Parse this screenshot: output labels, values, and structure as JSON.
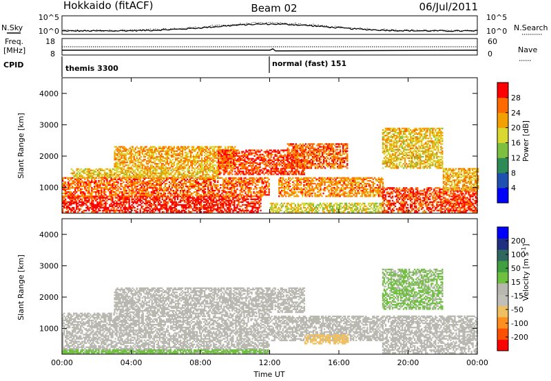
{
  "header": {
    "station": "Hokkaido (fitACF)",
    "beam": "Beam 02",
    "date": "06/Jul/2011"
  },
  "summary": {
    "nsky_label": "N.Sky",
    "nsky_ticks": [
      "10^5",
      "10^0"
    ],
    "nsearch_label": "N.Search",
    "nsearch_ticks": [
      "10^5",
      "10^0"
    ],
    "freq_label": "Freq.",
    "freq_unit": "[MHz]",
    "freq_ticks": [
      "18",
      "8"
    ],
    "nave_label": "Nave",
    "nave_ticks": [
      "60",
      "0"
    ],
    "cpid_label": "CPID",
    "cpid_segments": [
      {
        "start_hour": 0,
        "label": "themis 3300"
      },
      {
        "start_hour": 12,
        "label": "normal (fast) 151"
      }
    ]
  },
  "colors": {
    "power_scale": [
      "#0000ff",
      "#2050b0",
      "#2e8b57",
      "#7fbf3f",
      "#d8d830",
      "#f4a000",
      "#ff6a00",
      "#ff0000"
    ],
    "velocity_scale": [
      "#ff0000",
      "#ff5000",
      "#ff9020",
      "#f0c060",
      "#c0c0b8",
      "#b8b8b0",
      "#70c040",
      "#40a040",
      "#306860",
      "#203080",
      "#0000ff"
    ],
    "ground_scatter": "#c0c0b8"
  },
  "chart_data": [
    {
      "type": "heatmap",
      "name": "power",
      "xlabel": "",
      "ylabel": "Slant Range [km]",
      "x_ticks": [
        "00:00",
        "04:00",
        "08:00",
        "12:00",
        "16:00",
        "20:00",
        "00:00"
      ],
      "x_range_hours": [
        0,
        24
      ],
      "y_ticks": [
        1000,
        2000,
        3000,
        4000
      ],
      "ylim": [
        180,
        4500
      ],
      "colorbar_label": "Power [dB]",
      "colorbar_ticks": [
        4,
        8,
        12,
        16,
        20,
        24,
        28
      ],
      "colorbar_range": [
        0,
        32
      ],
      "regions": [
        {
          "t": [
            0,
            11.5
          ],
          "r": [
            200,
            700
          ],
          "value": 30
        },
        {
          "t": [
            0,
            12
          ],
          "r": [
            700,
            1300
          ],
          "value": 26
        },
        {
          "t": [
            0.5,
            9
          ],
          "r": [
            1300,
            1600
          ],
          "value": 20
        },
        {
          "t": [
            3,
            10
          ],
          "r": [
            1600,
            2300
          ],
          "value": 22
        },
        {
          "t": [
            9,
            14
          ],
          "r": [
            1400,
            2200
          ],
          "value": 28
        },
        {
          "t": [
            13,
            16.5
          ],
          "r": [
            1600,
            2400
          ],
          "value": 26
        },
        {
          "t": [
            12.5,
            18.5
          ],
          "r": [
            700,
            1300
          ],
          "value": 24
        },
        {
          "t": [
            12,
            18.5
          ],
          "r": [
            200,
            500
          ],
          "value": 18
        },
        {
          "t": [
            18.5,
            24
          ],
          "r": [
            200,
            1000
          ],
          "value": 28
        },
        {
          "t": [
            18.5,
            22
          ],
          "r": [
            1600,
            2900
          ],
          "value": 20
        },
        {
          "t": [
            22,
            24
          ],
          "r": [
            900,
            1600
          ],
          "value": 22
        }
      ]
    },
    {
      "type": "heatmap",
      "name": "velocity",
      "xlabel": "Time UT",
      "ylabel": "Slant Range [km]",
      "x_ticks": [
        "00:00",
        "04:00",
        "08:00",
        "12:00",
        "16:00",
        "20:00",
        "00:00"
      ],
      "x_range_hours": [
        0,
        24
      ],
      "y_ticks": [
        1000,
        2000,
        3000,
        4000
      ],
      "ylim": [
        180,
        4500
      ],
      "colorbar_label": "Velocity [m s^-1]",
      "colorbar_ticks": [
        200,
        100,
        50,
        15,
        -15,
        -50,
        -100,
        -200
      ],
      "colorbar_range": [
        -250,
        250
      ],
      "regions": [
        {
          "t": [
            0,
            12
          ],
          "r": [
            200,
            1500
          ],
          "value": 0
        },
        {
          "t": [
            3,
            14
          ],
          "r": [
            1500,
            2300
          ],
          "value": 0
        },
        {
          "t": [
            12,
            18.5
          ],
          "r": [
            600,
            1400
          ],
          "value": 0
        },
        {
          "t": [
            14,
            16.5
          ],
          "r": [
            500,
            800
          ],
          "value": -90
        },
        {
          "t": [
            18.5,
            24
          ],
          "r": [
            200,
            1400
          ],
          "value": 0
        },
        {
          "t": [
            18.5,
            22
          ],
          "r": [
            1600,
            2900
          ],
          "value": 30
        },
        {
          "t": [
            0,
            12
          ],
          "r": [
            200,
            300
          ],
          "value": 40
        }
      ]
    }
  ]
}
